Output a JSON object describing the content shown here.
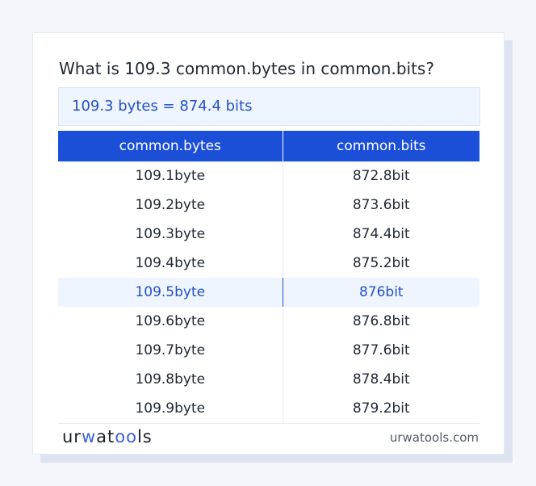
{
  "question": "What is 109.3 common.bytes in common.bits?",
  "result": "109.3 bytes = 874.4 bits",
  "table": {
    "headers": [
      "common.bytes",
      "common.bits"
    ],
    "rows": [
      [
        "109.1byte",
        "872.8bit"
      ],
      [
        "109.2byte",
        "873.6bit"
      ],
      [
        "109.3byte",
        "874.4bit"
      ],
      [
        "109.4byte",
        "875.2bit"
      ],
      [
        "109.5byte",
        "876bit"
      ],
      [
        "109.6byte",
        "876.8bit"
      ],
      [
        "109.7byte",
        "877.6bit"
      ],
      [
        "109.8byte",
        "878.4bit"
      ],
      [
        "109.9byte",
        "879.2bit"
      ]
    ],
    "highlighted_row": 4
  },
  "footer": {
    "logo": "urwatools",
    "site": "urwatools.com"
  },
  "colors": {
    "accent": "#1c4fd8",
    "highlight_text": "#2750c4"
  }
}
